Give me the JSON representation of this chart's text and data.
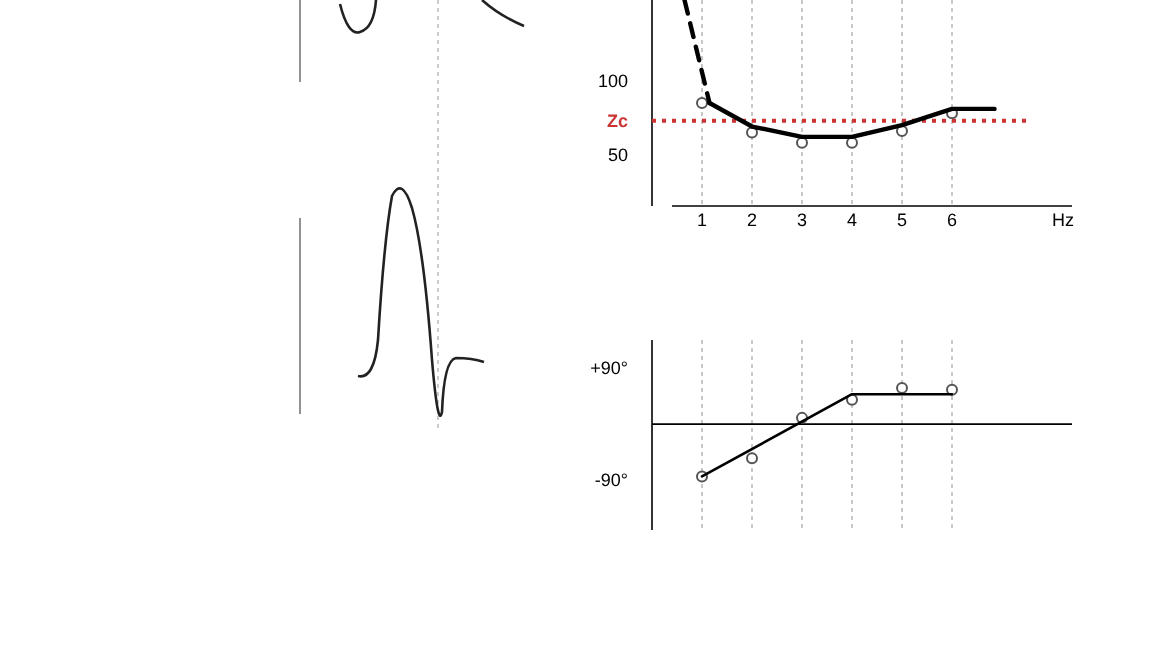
{
  "chart_data": [
    {
      "type": "scatter",
      "xlabel": "Hz",
      "xlim": [
        0,
        8.4
      ],
      "xticks": [
        1,
        2,
        3,
        4,
        5,
        6
      ],
      "ylim": [
        15,
        155
      ],
      "yticks": [
        50,
        100
      ],
      "grid": "x",
      "series": [
        {
          "color": "#555555",
          "marker": "circle",
          "x": [
            1,
            2,
            3,
            4,
            5,
            6
          ],
          "values": [
            85,
            65,
            58,
            58,
            66,
            78
          ]
        },
        {
          "type": "line",
          "color": "#000000",
          "line_style": "solid",
          "marker": "none",
          "x": [
            1.15,
            2,
            3,
            4,
            5,
            6,
            6.85
          ],
          "values": [
            85,
            69,
            62,
            62,
            70,
            81,
            81
          ]
        },
        {
          "type": "line",
          "color": "#000000",
          "line_style": "dashed",
          "marker": "none",
          "x": [
            0.65,
            1.15
          ],
          "values": [
            155,
            85
          ]
        }
      ],
      "ref_lines": [
        {
          "axis": "y",
          "value": 73,
          "label": "Zc",
          "color": "#cc3333",
          "line_style": "dotted"
        }
      ]
    },
    {
      "type": "scatter",
      "xlim": [
        0,
        8.4
      ],
      "xticks": [
        {
          "value": 1,
          "label": null
        },
        {
          "value": 2,
          "label": null
        },
        {
          "value": 3,
          "label": null
        },
        {
          "value": 4,
          "label": null
        },
        {
          "value": 5,
          "label": null
        },
        {
          "value": 6,
          "label": null
        }
      ],
      "ylim": [
        -170,
        135
      ],
      "yticks": [
        {
          "value": 90,
          "label": "+90°"
        },
        {
          "value": -90,
          "label": "-90°"
        }
      ],
      "grid": "x",
      "tick_labels": "y",
      "series": [
        {
          "color": "#555555",
          "marker": "circle",
          "x": [
            1,
            2,
            3,
            4,
            5,
            6
          ],
          "values": [
            -84,
            -55,
            10,
            39,
            58,
            55
          ]
        },
        {
          "type": "line",
          "color": "#000000",
          "line_style": "solid",
          "marker": "none",
          "x": [
            1,
            4,
            6
          ],
          "values": [
            -84,
            48,
            48
          ]
        }
      ]
    }
  ]
}
